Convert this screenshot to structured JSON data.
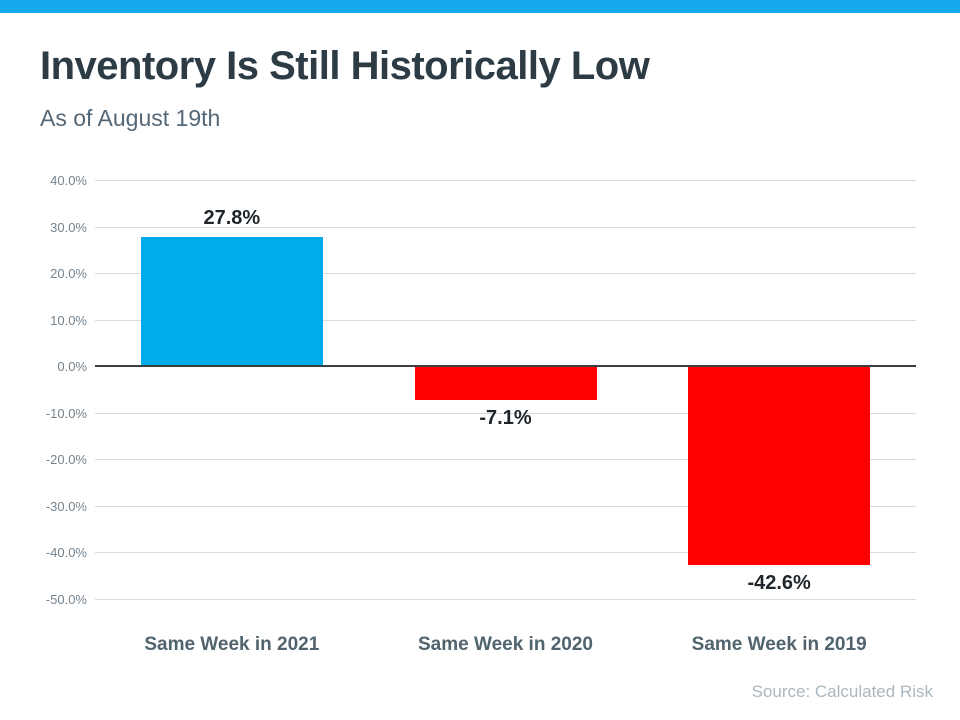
{
  "header": {
    "title": "Inventory Is Still Historically Low",
    "subtitle": "As of August 19th"
  },
  "footer": {
    "source": "Source: Calculated Risk"
  },
  "colors": {
    "accent_stripe": "#17a9ec",
    "positive_bar": "#00abec",
    "negative_bar": "#fe0000",
    "title_text": "#2d3b45",
    "subtitle_text": "#556878",
    "axis_text": "#74838f",
    "category_text": "#51646e",
    "value_text": "#1e252b",
    "gridline": "#d9d9d9",
    "zero_line": "#3b3f43",
    "source_text": "#abb7bf"
  },
  "chart_data": {
    "type": "bar",
    "title": "Inventory Is Still Historically Low",
    "subtitle": "As of August 19th",
    "categories": [
      "Same Week in 2021",
      "Same Week in 2020",
      "Same Week in 2019"
    ],
    "values": [
      27.8,
      -7.1,
      -42.6
    ],
    "value_labels": [
      "27.8%",
      "-7.1%",
      "-42.6%"
    ],
    "bar_colors": [
      "#00abec",
      "#fe0000",
      "#fe0000"
    ],
    "xlabel": "",
    "ylabel": "",
    "ylim": [
      -50,
      40
    ],
    "y_ticks": [
      {
        "value": 40,
        "label": "40.0%"
      },
      {
        "value": 30,
        "label": "30.0%"
      },
      {
        "value": 20,
        "label": "20.0%"
      },
      {
        "value": 10,
        "label": "10.0%"
      },
      {
        "value": 0,
        "label": "0.0%"
      },
      {
        "value": -10,
        "label": "-10.0%"
      },
      {
        "value": -20,
        "label": "-20.0%"
      },
      {
        "value": -30,
        "label": "-30.0%"
      },
      {
        "value": -40,
        "label": "-40.0%"
      },
      {
        "value": -50,
        "label": "-50.0%"
      }
    ],
    "grid": true,
    "legend": false,
    "value_label_position": "outside-end",
    "source": "Source: Calculated Risk"
  }
}
